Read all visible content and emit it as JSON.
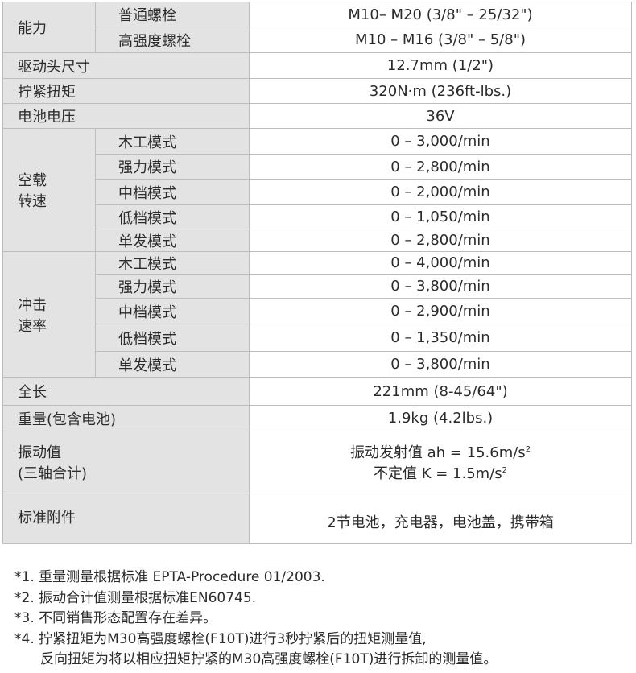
{
  "spec_table": {
    "capacity": {
      "label": "能力",
      "rows": [
        {
          "sub": "普通螺栓",
          "value": "M10– M20 (3/8\" – 25/32\")"
        },
        {
          "sub": "高强度螺栓",
          "value": "M10 – M16 (3/8\" – 5/8\")"
        }
      ]
    },
    "anvil": {
      "label": "驱动头尺寸",
      "value": "12.7mm (1/2\")"
    },
    "torque": {
      "label": "拧紧扭矩",
      "value": "320N·m (236ft-lbs.)"
    },
    "voltage": {
      "label": "电池电压",
      "value": "36V"
    },
    "no_load_speed": {
      "label_line1": "空载",
      "label_line2": "转速",
      "rows": [
        {
          "sub": "木工模式",
          "value": "0 – 3,000/min"
        },
        {
          "sub": "强力模式",
          "value": "0 – 2,800/min"
        },
        {
          "sub": "中档模式",
          "value": "0 – 2,000/min"
        },
        {
          "sub": "低档模式",
          "value": "0 – 1,050/min"
        },
        {
          "sub": "单发模式",
          "value": "0 – 2,800/min"
        }
      ]
    },
    "impact_rate": {
      "label_line1": "冲击",
      "label_line2": "速率",
      "rows": [
        {
          "sub": "木工模式",
          "value": "0 – 4,000/min"
        },
        {
          "sub": "强力模式",
          "value": "0 – 3,800/min"
        },
        {
          "sub": "中档模式",
          "value": "0 – 2,900/min"
        },
        {
          "sub": "低档模式",
          "value": "0 – 1,350/min"
        },
        {
          "sub": "单发模式",
          "value": "0 – 3,800/min"
        }
      ]
    },
    "length": {
      "label": "全长",
      "value": "221mm (8-45/64\")"
    },
    "weight": {
      "label": "重量(包含电池)",
      "value": "1.9kg (4.2lbs.)"
    },
    "vibration": {
      "label_line1": "振动值",
      "label_line2": "(三轴合计)",
      "value_line1": "振动发射值 ah = 15.6m/s",
      "value_line2": "不定值 K = 1.5m/s",
      "sup": "2"
    },
    "accessories": {
      "label": "标准附件",
      "value": "2节电池，充电器，电池盖，携带箱"
    }
  },
  "notes": [
    "*1. 重量测量根据标准  EPTA-Procedure 01/2003.",
    "*2. 振动合计值测量根据标准EN60745.",
    "*3. 不同销售形态配置存在差异。",
    "*4. 拧紧扭矩为M30高强度螺栓(F10T)进行3秒拧紧后的扭矩测量值,",
    "反向扭矩为将以相应扭矩拧紧的M30高强度螺栓(F10T)进行拆卸的测量值。"
  ]
}
